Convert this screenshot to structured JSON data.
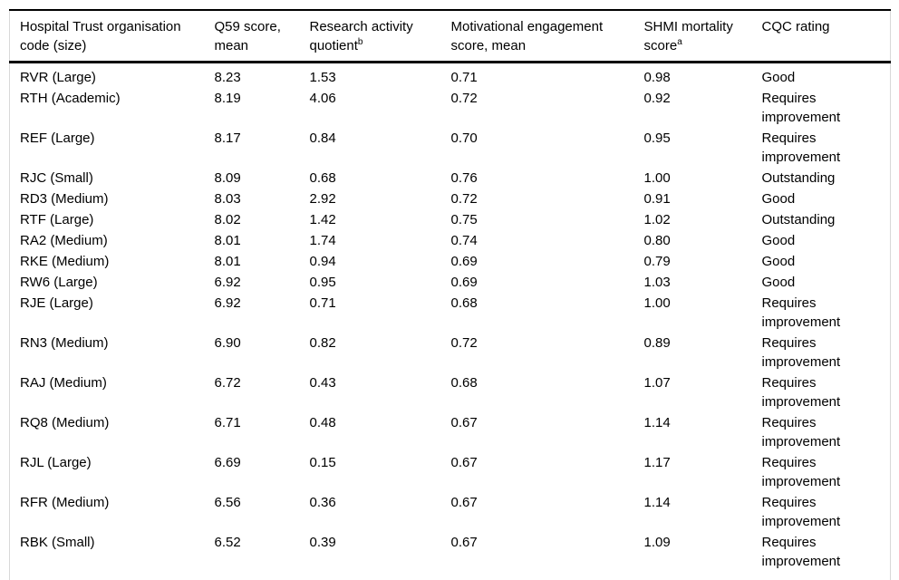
{
  "colors": {
    "background": "#ffffff",
    "text": "#000000",
    "rule": "#000000",
    "side_border": "#d9d9d9"
  },
  "table": {
    "columns": [
      {
        "label": "Hospital Trust organisation code (size)"
      },
      {
        "label": "Q59 score, mean"
      },
      {
        "label": "Research activity quotient",
        "superscript": "b"
      },
      {
        "label": "Motivational engagement score, mean"
      },
      {
        "label": "SHMI mortality score",
        "superscript": "a"
      },
      {
        "label": "CQC rating"
      }
    ],
    "rows": [
      [
        "RVR (Large)",
        "8.23",
        "1.53",
        "0.71",
        "0.98",
        "Good"
      ],
      [
        "RTH (Academic)",
        "8.19",
        "4.06",
        "0.72",
        "0.92",
        "Requires improvement"
      ],
      [
        "REF (Large)",
        "8.17",
        "0.84",
        "0.70",
        "0.95",
        "Requires improvement"
      ],
      [
        "RJC (Small)",
        "8.09",
        "0.68",
        "0.76",
        "1.00",
        "Outstanding"
      ],
      [
        "RD3 (Medium)",
        "8.03",
        "2.92",
        "0.72",
        "0.91",
        "Good"
      ],
      [
        "RTF (Large)",
        "8.02",
        "1.42",
        "0.75",
        "1.02",
        "Outstanding"
      ],
      [
        "RA2 (Medium)",
        "8.01",
        "1.74",
        "0.74",
        "0.80",
        "Good"
      ],
      [
        "RKE (Medium)",
        "8.01",
        "0.94",
        "0.69",
        "0.79",
        "Good"
      ],
      [
        "RW6 (Large)",
        "6.92",
        "0.95",
        "0.69",
        "1.03",
        "Good"
      ],
      [
        "RJE (Large)",
        "6.92",
        "0.71",
        "0.68",
        "1.00",
        "Requires improvement"
      ],
      [
        "RN3 (Medium)",
        "6.90",
        "0.82",
        "0.72",
        "0.89",
        "Requires improvement"
      ],
      [
        "RAJ (Medium)",
        "6.72",
        "0.43",
        "0.68",
        "1.07",
        "Requires improvement"
      ],
      [
        "RQ8 (Medium)",
        "6.71",
        "0.48",
        "0.67",
        "1.14",
        "Requires improvement"
      ],
      [
        "RJL (Large)",
        "6.69",
        "0.15",
        "0.67",
        "1.17",
        "Requires improvement"
      ],
      [
        "RFR (Medium)",
        "6.56",
        "0.36",
        "0.67",
        "1.14",
        "Requires improvement"
      ],
      [
        "RBK (Small)",
        "6.52",
        "0.39",
        "0.67",
        "1.09",
        "Requires improvement"
      ]
    ]
  }
}
